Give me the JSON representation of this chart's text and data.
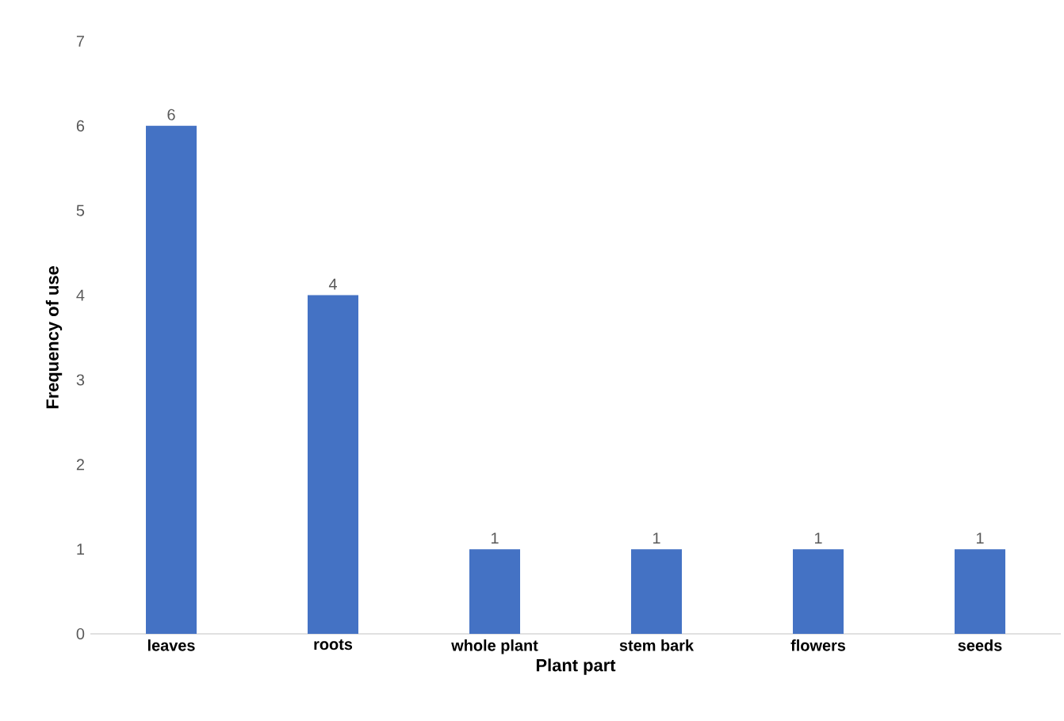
{
  "chart_data": {
    "type": "bar",
    "xlabel": "Plant part",
    "ylabel": "Frequency of use",
    "categories": [
      "leaves",
      "roots",
      "whole plant",
      "stem bark",
      "flowers",
      "seeds"
    ],
    "values": [
      6,
      4,
      1,
      1,
      1,
      1
    ],
    "color": "#4472c4",
    "ylim": [
      0,
      7
    ],
    "yticks": [
      0,
      1,
      2,
      3,
      4,
      5,
      6,
      7
    ],
    "data_labels": true
  }
}
